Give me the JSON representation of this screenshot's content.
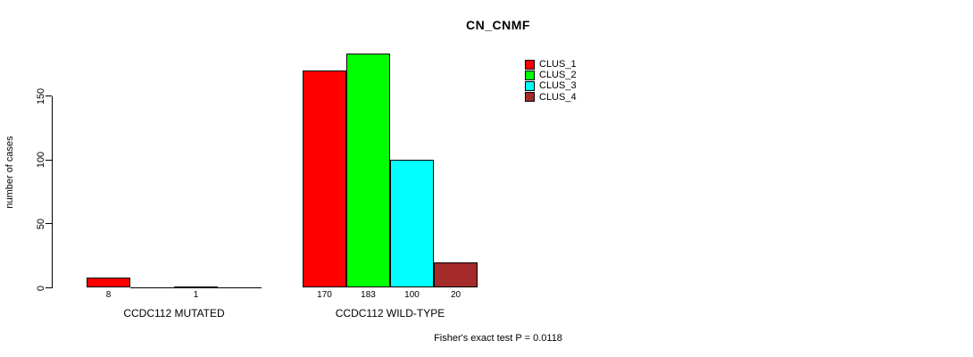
{
  "chart_data": {
    "type": "bar",
    "title": "CN_CNMF",
    "ylabel": "number of cases",
    "xlabel": "",
    "categories": [
      "CCDC112 MUTATED",
      "CCDC112 WILD-TYPE"
    ],
    "series": [
      {
        "name": "CLUS_1",
        "color": "#FF0000",
        "values": [
          8,
          170
        ]
      },
      {
        "name": "CLUS_2",
        "color": "#00FF00",
        "values": [
          0,
          183
        ]
      },
      {
        "name": "CLUS_3",
        "color": "#00FFFF",
        "values": [
          1,
          100
        ]
      },
      {
        "name": "CLUS_4",
        "color": "#A52A2A",
        "values": [
          0,
          20
        ]
      }
    ],
    "value_labels": [
      [
        "8",
        "",
        "1",
        ""
      ],
      [
        "170",
        "183",
        "100",
        "20"
      ]
    ],
    "yticks": [
      0,
      50,
      100,
      150
    ],
    "ylim": [
      0,
      190
    ],
    "grid": false,
    "legend_position": "top-right",
    "legend_entries": [
      "CLUS_1",
      "CLUS_2",
      "CLUS_3",
      "CLUS_4"
    ],
    "annotation": "Fisher's exact test P = 0.0118",
    "axis_color": "#000000",
    "background": "#FFFFFF"
  }
}
